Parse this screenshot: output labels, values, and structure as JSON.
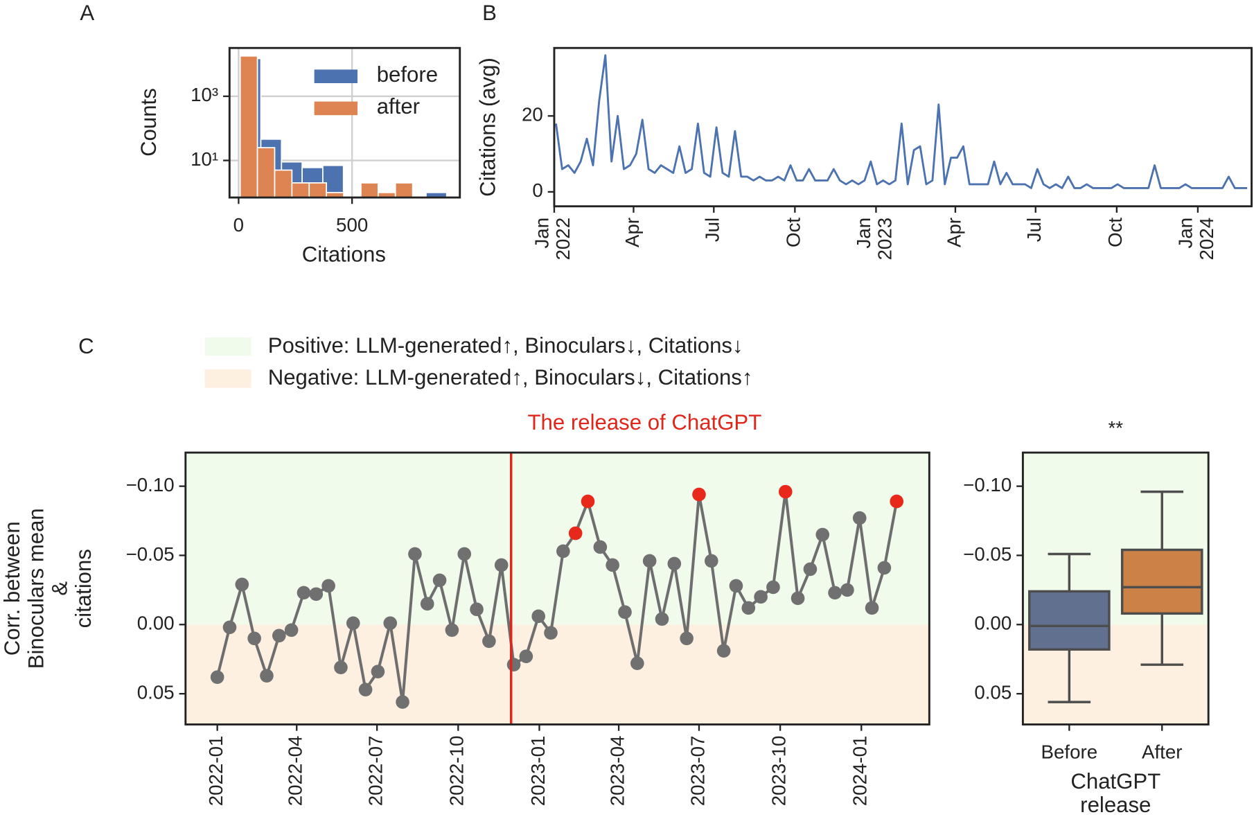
{
  "chart_data": [
    {
      "type": "histogram",
      "panel": "A",
      "xlabel": "Citations",
      "ylabel": "Counts",
      "log_y": true,
      "grid": true,
      "legend": "upper right",
      "xlim": [
        -40,
        975
      ],
      "xticks": [
        0,
        500
      ],
      "ylim": [
        0.7,
        32000
      ],
      "yticks": [
        {
          "value": 10,
          "label": "10¹"
        },
        {
          "value": 1000,
          "label": "10³"
        }
      ],
      "series": [
        {
          "name": "before",
          "color": "#4c72b0",
          "bins": [
            7,
            98,
            189,
            280,
            371,
            462,
            553,
            644,
            735,
            826,
            917
          ],
          "values": [
            15000,
            46,
            9,
            6,
            7,
            0,
            0,
            0,
            0,
            1
          ]
        },
        {
          "name": "after",
          "color": "#dd8452",
          "bins": [
            7,
            83,
            159,
            235,
            311,
            387,
            463,
            539,
            615,
            691,
            767
          ],
          "values": [
            18000,
            25,
            5,
            2,
            2,
            1,
            0,
            2,
            1,
            2
          ]
        }
      ]
    },
    {
      "type": "line",
      "panel": "B",
      "ylabel": "Citations (avg)",
      "color": "#4c72b0",
      "xlim": [
        "2022-01-01",
        "2024-03-02"
      ],
      "xticks": [
        {
          "value": "2022-01-01",
          "label": "Jan\n2022"
        },
        {
          "value": "2022-04-01",
          "label": "Apr"
        },
        {
          "value": "2022-07-01",
          "label": "Jul"
        },
        {
          "value": "2022-10-01",
          "label": "Oct"
        },
        {
          "value": "2023-01-01",
          "label": "Jan\n2023"
        },
        {
          "value": "2023-04-01",
          "label": "Apr"
        },
        {
          "value": "2023-07-01",
          "label": "Jul"
        },
        {
          "value": "2023-10-01",
          "label": "Oct"
        },
        {
          "value": "2024-01-01",
          "label": "Jan\n2024"
        }
      ],
      "ylim": [
        -3.8,
        37.9
      ],
      "yticks": [
        0,
        20
      ],
      "x": [
        "2022-01-03",
        "2022-01-10",
        "2022-01-17",
        "2022-01-24",
        "2022-01-31",
        "2022-02-07",
        "2022-02-14",
        "2022-02-21",
        "2022-02-28",
        "2022-03-07",
        "2022-03-14",
        "2022-03-21",
        "2022-03-28",
        "2022-04-04",
        "2022-04-11",
        "2022-04-18",
        "2022-04-25",
        "2022-05-02",
        "2022-05-09",
        "2022-05-16",
        "2022-05-23",
        "2022-05-30",
        "2022-06-06",
        "2022-06-13",
        "2022-06-20",
        "2022-06-27",
        "2022-07-04",
        "2022-07-11",
        "2022-07-18",
        "2022-07-25",
        "2022-08-01",
        "2022-08-08",
        "2022-08-15",
        "2022-08-22",
        "2022-08-29",
        "2022-09-05",
        "2022-09-12",
        "2022-09-19",
        "2022-09-26",
        "2022-10-03",
        "2022-10-10",
        "2022-10-17",
        "2022-10-24",
        "2022-10-31",
        "2022-11-07",
        "2022-11-14",
        "2022-11-21",
        "2022-11-28",
        "2022-12-05",
        "2022-12-12",
        "2022-12-19",
        "2022-12-26",
        "2023-01-02",
        "2023-01-09",
        "2023-01-16",
        "2023-01-23",
        "2023-01-30",
        "2023-02-06",
        "2023-02-13",
        "2023-02-20",
        "2023-02-27",
        "2023-03-06",
        "2023-03-13",
        "2023-03-20",
        "2023-03-27",
        "2023-04-03",
        "2023-04-10",
        "2023-04-17",
        "2023-04-24",
        "2023-05-01",
        "2023-05-08",
        "2023-05-15",
        "2023-05-22",
        "2023-05-29",
        "2023-06-05",
        "2023-06-12",
        "2023-06-19",
        "2023-06-26",
        "2023-07-03",
        "2023-07-10",
        "2023-07-17",
        "2023-07-24",
        "2023-07-31",
        "2023-08-07",
        "2023-08-14",
        "2023-08-21",
        "2023-08-28",
        "2023-09-04",
        "2023-09-11",
        "2023-09-18",
        "2023-09-25",
        "2023-10-02",
        "2023-10-09",
        "2023-10-16",
        "2023-10-23",
        "2023-10-30",
        "2023-11-06",
        "2023-11-13",
        "2023-11-20",
        "2023-11-27",
        "2023-12-04",
        "2023-12-11",
        "2023-12-18",
        "2023-12-25",
        "2024-01-01",
        "2024-01-08",
        "2024-01-15",
        "2024-01-22",
        "2024-01-29",
        "2024-02-05",
        "2024-02-12",
        "2024-02-19",
        "2024-02-26"
      ],
      "values": [
        18,
        6,
        7,
        5,
        8,
        14,
        7,
        24,
        36,
        8,
        20,
        6,
        7,
        10,
        19,
        6,
        5,
        7,
        6,
        5,
        12,
        5,
        6,
        18,
        5,
        4,
        17,
        5,
        4,
        16,
        4,
        4,
        3,
        4,
        3,
        3,
        4,
        3,
        7,
        3,
        3,
        6,
        3,
        3,
        3,
        6,
        3,
        2,
        3,
        2,
        3,
        8,
        2,
        3,
        2,
        3,
        18,
        2,
        11,
        12,
        2,
        3,
        23,
        2,
        9,
        9,
        12,
        2,
        2,
        2,
        2,
        8,
        2,
        5,
        2,
        2,
        2,
        1,
        6,
        2,
        1,
        2,
        1,
        4,
        1,
        1,
        2,
        1,
        1,
        1,
        1,
        2,
        1,
        1,
        1,
        1,
        1,
        7,
        1,
        1,
        1,
        1,
        2,
        1,
        1,
        1,
        1,
        1,
        1,
        4,
        1,
        1,
        1
      ]
    },
    {
      "type": "line",
      "panel": "C",
      "ylabel": "Corr. between\nBinoculars mean\n&\ncitations",
      "bands": [
        {
          "name": "Positive: LLM-generated↑, Binoculars↓, Citations↓",
          "color": "#f0fbec"
        },
        {
          "name": "Negative: LLM-generated↑, Binoculars↓, Citations↑",
          "color": "#fdf0e1"
        }
      ],
      "annotation": {
        "text": "The release of ChatGPT",
        "x": "2022-11-30",
        "color": "#e0261b"
      },
      "color": "#6e6e6e",
      "xlim": [
        "2021-11-26",
        "2024-03-18"
      ],
      "xticks": [
        {
          "value": "2022-01-01",
          "label": "2022-01"
        },
        {
          "value": "2022-04-01",
          "label": "2022-04"
        },
        {
          "value": "2022-07-01",
          "label": "2022-07"
        },
        {
          "value": "2022-10-01",
          "label": "2022-10"
        },
        {
          "value": "2023-01-01",
          "label": "2023-01"
        },
        {
          "value": "2023-04-01",
          "label": "2023-04"
        },
        {
          "value": "2023-07-01",
          "label": "2023-07"
        },
        {
          "value": "2023-10-01",
          "label": "2023-10"
        },
        {
          "value": "2024-01-01",
          "label": "2024-01"
        }
      ],
      "ylim": [
        0.0722,
        -0.1243
      ],
      "yticks": [
        {
          "value": 0.05,
          "label": "0.05"
        },
        {
          "value": 0,
          "label": "0.00"
        },
        {
          "value": -0.05,
          "label": "−0.05"
        },
        {
          "value": -0.1,
          "label": "−0.10"
        }
      ],
      "x": [
        "2022-01-01",
        "2022-01-15",
        "2022-01-29",
        "2022-02-12",
        "2022-02-26",
        "2022-03-12",
        "2022-03-26",
        "2022-04-09",
        "2022-04-23",
        "2022-05-07",
        "2022-05-21",
        "2022-06-04",
        "2022-06-18",
        "2022-07-02",
        "2022-07-16",
        "2022-07-30",
        "2022-08-13",
        "2022-08-27",
        "2022-09-10",
        "2022-09-24",
        "2022-10-08",
        "2022-10-22",
        "2022-11-05",
        "2022-11-19",
        "2022-12-03",
        "2022-12-17",
        "2022-12-31",
        "2023-01-14",
        "2023-01-28",
        "2023-02-11",
        "2023-02-25",
        "2023-03-11",
        "2023-03-25",
        "2023-04-08",
        "2023-04-22",
        "2023-05-06",
        "2023-05-20",
        "2023-06-03",
        "2023-06-17",
        "2023-07-01",
        "2023-07-15",
        "2023-07-29",
        "2023-08-12",
        "2023-08-26",
        "2023-09-09",
        "2023-09-23",
        "2023-10-07",
        "2023-10-21",
        "2023-11-04",
        "2023-11-18",
        "2023-12-02",
        "2023-12-16",
        "2023-12-30",
        "2024-01-13",
        "2024-01-27",
        "2024-02-10"
      ],
      "values": [
        0.038,
        0.002,
        -0.029,
        0.01,
        0.037,
        0.008,
        0.004,
        -0.023,
        -0.022,
        -0.028,
        0.031,
        -0.001,
        0.047,
        0.034,
        -0.001,
        0.056,
        -0.051,
        -0.015,
        -0.032,
        0.004,
        -0.051,
        -0.011,
        0.012,
        -0.043,
        0.029,
        0.023,
        -0.006,
        0.006,
        -0.053,
        -0.066,
        -0.089,
        -0.056,
        -0.043,
        -0.009,
        0.028,
        -0.046,
        -0.004,
        -0.044,
        0.01,
        -0.094,
        -0.046,
        0.019,
        -0.028,
        -0.012,
        -0.02,
        -0.027,
        -0.096,
        -0.019,
        -0.04,
        -0.065,
        -0.023,
        -0.025,
        -0.077,
        -0.012,
        -0.041,
        -0.089
      ],
      "marker_colors": [
        "#707070",
        "#707070",
        "#707070",
        "#707070",
        "#707070",
        "#707070",
        "#707070",
        "#707070",
        "#707070",
        "#707070",
        "#707070",
        "#707070",
        "#707070",
        "#707070",
        "#707070",
        "#707070",
        "#707070",
        "#707070",
        "#707070",
        "#707070",
        "#707070",
        "#707070",
        "#707070",
        "#707070",
        "#707070",
        "#707070",
        "#707070",
        "#707070",
        "#707070",
        "#e8281b",
        "#e8281b",
        "#707070",
        "#707070",
        "#707070",
        "#707070",
        "#707070",
        "#707070",
        "#707070",
        "#707070",
        "#e8281b",
        "#707070",
        "#707070",
        "#707070",
        "#707070",
        "#707070",
        "#707070",
        "#e8281b",
        "#707070",
        "#707070",
        "#707070",
        "#707070",
        "#707070",
        "#707070",
        "#707070",
        "#707070",
        "#e8281b"
      ]
    },
    {
      "type": "box",
      "title": "**",
      "xlabel": "ChatGPT\nrelease",
      "categories": [
        "Before",
        "After"
      ],
      "ylim": [
        0.0722,
        -0.1243
      ],
      "yticks": [
        {
          "value": 0.05,
          "label": "0.05"
        },
        {
          "value": 0,
          "label": "0.00"
        },
        {
          "value": -0.05,
          "label": "−0.05"
        },
        {
          "value": -0.1,
          "label": "−0.10"
        }
      ],
      "boxes": [
        {
          "whislo": -0.051,
          "q1": -0.024,
          "med": 0.001,
          "q3": 0.018,
          "whishi": 0.056,
          "color": "#62708f"
        },
        {
          "whislo": -0.096,
          "q1": -0.054,
          "med": -0.027,
          "q3": -0.008,
          "whishi": 0.029,
          "color": "#cc8247"
        }
      ]
    }
  ]
}
